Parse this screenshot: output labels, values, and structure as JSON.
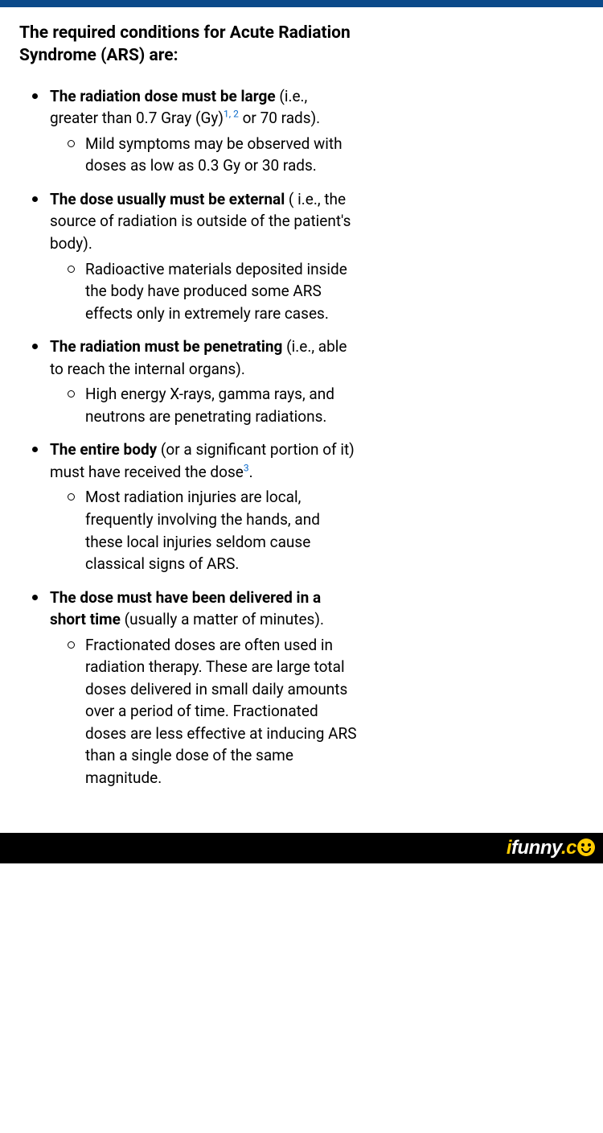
{
  "colors": {
    "top_bar": "#0b4a8a",
    "background": "#ffffff",
    "text": "#000000",
    "footnote_link": "#0b6bcb",
    "bottom_bar": "#000000",
    "watermark_accent": "#ffcc00",
    "watermark_main": "#ffffff"
  },
  "heading": "The required conditions for Acute Radiation Syndrome (ARS) are:",
  "items": [
    {
      "bold": "The radiation dose must be large",
      "rest_before_fn": " (i.e., greater than 0.7 Gray (Gy)",
      "footnotes": "1, 2",
      "rest_after_fn": " or 70 rads).",
      "sub": "Mild symptoms may be observed with doses as low as 0.3 Gy or 30 rads."
    },
    {
      "bold": "The dose usually must be external",
      "rest": " ( i.e., the source of radiation is outside of the patient's body).",
      "sub": "Radioactive materials deposited inside the body have produced some ARS effects only in extremely rare cases."
    },
    {
      "bold": "The radiation must be penetrating",
      "rest": " (i.e., able to reach the internal organs).",
      "sub": "High energy X-rays, gamma rays, and neutrons are penetrating radiations."
    },
    {
      "bold": "The entire body",
      "rest_before_fn": " (or a significant portion of it) must have received the dose",
      "footnotes": "3",
      "rest_after_fn": ".",
      "sub": "Most radiation injuries are local, frequently involving the hands, and these local injuries seldom cause classical signs of ARS."
    },
    {
      "bold": "The dose must have been delivered in a short time",
      "rest": " (usually a matter of minutes).",
      "sub": "Fractionated doses are often used in radiation therapy. These are large total doses delivered in small daily amounts over a period of time. Fractionated doses are less effective at inducing ARS than a single dose of the same magnitude."
    }
  ],
  "watermark": {
    "i": "i",
    "funny": "funny",
    "dot": ".",
    "c": "c"
  }
}
